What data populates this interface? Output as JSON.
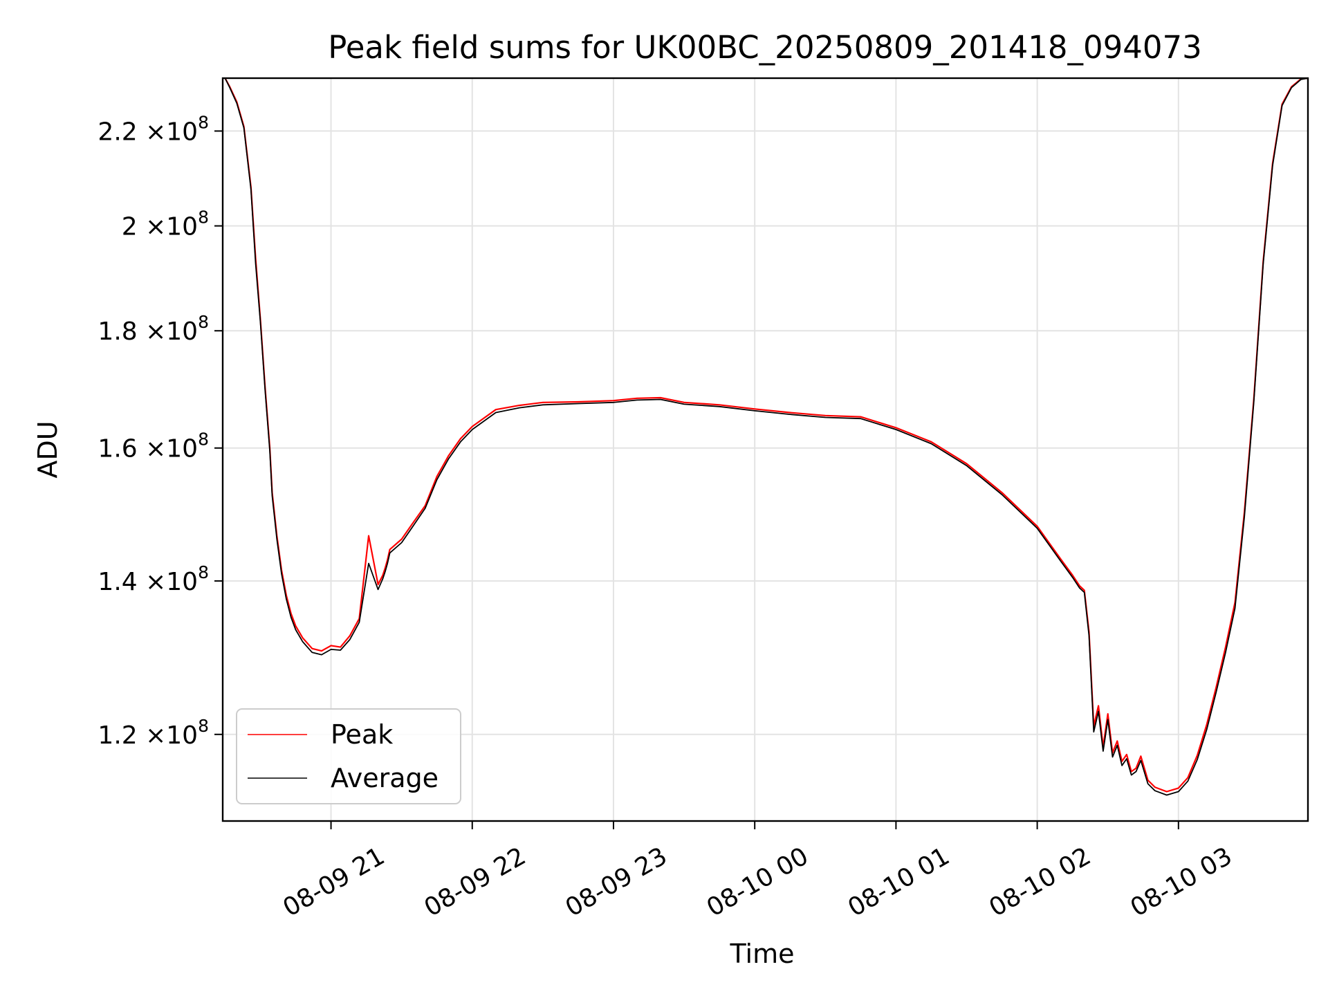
{
  "chart_data": {
    "type": "line",
    "title": "Peak field sums for UK00BC_20250809_201418_094073",
    "xlabel": "Time",
    "ylabel": "ADU",
    "yscale": "log",
    "grid": true,
    "legend_position": "lower-left",
    "xlim": [
      "2025-08-09 20:14",
      "2025-08-10 03:55"
    ],
    "ylim": [
      110000000,
      232000000
    ],
    "x_ticks": [
      {
        "value": "2025-08-09 21:00",
        "label": "08-09 21"
      },
      {
        "value": "2025-08-09 22:00",
        "label": "08-09 22"
      },
      {
        "value": "2025-08-09 23:00",
        "label": "08-09 23"
      },
      {
        "value": "2025-08-10 00:00",
        "label": "08-10 00"
      },
      {
        "value": "2025-08-10 01:00",
        "label": "08-10 01"
      },
      {
        "value": "2025-08-10 02:00",
        "label": "08-10 02"
      },
      {
        "value": "2025-08-10 03:00",
        "label": "08-10 03"
      }
    ],
    "y_ticks": [
      {
        "value": 120000000,
        "mantissa": "1.2",
        "exponent": "8"
      },
      {
        "value": 140000000,
        "mantissa": "1.4",
        "exponent": "8"
      },
      {
        "value": 160000000,
        "mantissa": "1.6",
        "exponent": "8"
      },
      {
        "value": 180000000,
        "mantissa": "1.8",
        "exponent": "8"
      },
      {
        "value": 200000000,
        "mantissa": "2",
        "exponent": "8"
      },
      {
        "value": 220000000,
        "mantissa": "2.2",
        "exponent": "8"
      }
    ],
    "tick_times_label": "×10",
    "x": [
      "2025-08-09 20:15",
      "2025-08-09 20:17",
      "2025-08-09 20:20",
      "2025-08-09 20:23",
      "2025-08-09 20:26",
      "2025-08-09 20:28",
      "2025-08-09 20:30",
      "2025-08-09 20:32",
      "2025-08-09 20:34",
      "2025-08-09 20:35",
      "2025-08-09 20:37",
      "2025-08-09 20:39",
      "2025-08-09 20:41",
      "2025-08-09 20:43",
      "2025-08-09 20:45",
      "2025-08-09 20:48",
      "2025-08-09 20:52",
      "2025-08-09 20:56",
      "2025-08-09 21:00",
      "2025-08-09 21:04",
      "2025-08-09 21:08",
      "2025-08-09 21:12",
      "2025-08-09 21:16",
      "2025-08-09 21:20",
      "2025-08-09 21:22",
      "2025-08-09 21:23",
      "2025-08-09 21:24",
      "2025-08-09 21:25",
      "2025-08-09 21:30",
      "2025-08-09 21:35",
      "2025-08-09 21:40",
      "2025-08-09 21:45",
      "2025-08-09 21:50",
      "2025-08-09 21:55",
      "2025-08-09 22:00",
      "2025-08-09 22:10",
      "2025-08-09 22:20",
      "2025-08-09 22:30",
      "2025-08-09 22:45",
      "2025-08-09 23:00",
      "2025-08-09 23:10",
      "2025-08-09 23:20",
      "2025-08-09 23:30",
      "2025-08-09 23:45",
      "2025-08-10 00:00",
      "2025-08-10 00:15",
      "2025-08-10 00:30",
      "2025-08-10 00:45",
      "2025-08-10 01:00",
      "2025-08-10 01:15",
      "2025-08-10 01:30",
      "2025-08-10 01:45",
      "2025-08-10 02:00",
      "2025-08-10 02:10",
      "2025-08-10 02:15",
      "2025-08-10 02:18",
      "2025-08-10 02:20",
      "2025-08-10 02:22",
      "2025-08-10 02:24",
      "2025-08-10 02:26",
      "2025-08-10 02:28",
      "2025-08-10 02:30",
      "2025-08-10 02:32",
      "2025-08-10 02:34",
      "2025-08-10 02:36",
      "2025-08-10 02:38",
      "2025-08-10 02:40",
      "2025-08-10 02:42",
      "2025-08-10 02:44",
      "2025-08-10 02:47",
      "2025-08-10 02:50",
      "2025-08-10 02:55",
      "2025-08-10 03:00",
      "2025-08-10 03:04",
      "2025-08-10 03:08",
      "2025-08-10 03:12",
      "2025-08-10 03:16",
      "2025-08-10 03:20",
      "2025-08-10 03:24",
      "2025-08-10 03:28",
      "2025-08-10 03:32",
      "2025-08-10 03:36",
      "2025-08-10 03:40",
      "2025-08-10 03:44",
      "2025-08-10 03:48",
      "2025-08-10 03:52",
      "2025-08-10 03:55"
    ],
    "series": [
      {
        "name": "Peak",
        "color": "#ff0000",
        "values": [
          232000000,
          230000000,
          226500000,
          221000000,
          208000000,
          193500000,
          182000000,
          170000000,
          160000000,
          153000000,
          146500000,
          141500000,
          138000000,
          135500000,
          133800000,
          132200000,
          130800000,
          130500000,
          131200000,
          131000000,
          132500000,
          134800000,
          146500000,
          139500000,
          140800000,
          141800000,
          143000000,
          144500000,
          146000000,
          148500000,
          151000000,
          155500000,
          158800000,
          161500000,
          163500000,
          166300000,
          167000000,
          167500000,
          167600000,
          167800000,
          168200000,
          168300000,
          167500000,
          167100000,
          166400000,
          165800000,
          165300000,
          165100000,
          163300000,
          161000000,
          157500000,
          153000000,
          147900000,
          143100000,
          140800000,
          139300000,
          138700000,
          133000000,
          121000000,
          123500000,
          118500000,
          122500000,
          117800000,
          119200000,
          116800000,
          117600000,
          115600000,
          116000000,
          117400000,
          114600000,
          113800000,
          113300000,
          113700000,
          114900000,
          117500000,
          121200000,
          125800000,
          131000000,
          137000000,
          150000000,
          168000000,
          193000000,
          213000000,
          226000000,
          230000000,
          231800000,
          232000000
        ]
      },
      {
        "name": "Average",
        "color": "#000000",
        "values": [
          232000000,
          229800000,
          226200000,
          220700000,
          207500000,
          192500000,
          181500000,
          169500000,
          159500000,
          152500000,
          146000000,
          141000000,
          137500000,
          135000000,
          133300000,
          131700000,
          130300000,
          130000000,
          130700000,
          130600000,
          132000000,
          134300000,
          142500000,
          138800000,
          140300000,
          141300000,
          142500000,
          144000000,
          145500000,
          148000000,
          150600000,
          155000000,
          158300000,
          161000000,
          163000000,
          165800000,
          166600000,
          167100000,
          167300000,
          167500000,
          167900000,
          168000000,
          167200000,
          166800000,
          166100000,
          165500000,
          165000000,
          164800000,
          163000000,
          160700000,
          157200000,
          152700000,
          147600000,
          142800000,
          140500000,
          139000000,
          138400000,
          132500000,
          120300000,
          122800000,
          118000000,
          121800000,
          117300000,
          118700000,
          116300000,
          117100000,
          115200000,
          115600000,
          116900000,
          114200000,
          113400000,
          112900000,
          113300000,
          114500000,
          117000000,
          120600000,
          125200000,
          130300000,
          136200000,
          149300000,
          167500000,
          192500000,
          212500000,
          225700000,
          229800000,
          231700000,
          232000000
        ]
      }
    ]
  }
}
